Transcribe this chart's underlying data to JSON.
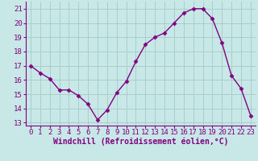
{
  "x": [
    0,
    1,
    2,
    3,
    4,
    5,
    6,
    7,
    8,
    9,
    10,
    11,
    12,
    13,
    14,
    15,
    16,
    17,
    18,
    19,
    20,
    21,
    22,
    23
  ],
  "y": [
    17.0,
    16.5,
    16.1,
    15.3,
    15.3,
    14.9,
    14.3,
    13.2,
    13.9,
    15.1,
    15.9,
    17.3,
    18.5,
    19.0,
    19.3,
    20.0,
    20.7,
    21.0,
    21.0,
    20.3,
    18.6,
    16.3,
    15.4,
    13.5
  ],
  "line_color": "#800080",
  "marker": "D",
  "marker_size": 2.5,
  "bg_color": "#c8e8e8",
  "grid_color": "#a8cece",
  "xlabel": "Windchill (Refroidissement éolien,°C)",
  "ylabel": "",
  "ylim_min": 12.8,
  "ylim_max": 21.5,
  "xlim_min": -0.5,
  "xlim_max": 23.5,
  "yticks": [
    13,
    14,
    15,
    16,
    17,
    18,
    19,
    20,
    21
  ],
  "xticks": [
    0,
    1,
    2,
    3,
    4,
    5,
    6,
    7,
    8,
    9,
    10,
    11,
    12,
    13,
    14,
    15,
    16,
    17,
    18,
    19,
    20,
    21,
    22,
    23
  ],
  "xlabel_color": "#800080",
  "tick_color": "#800080",
  "spine_color": "#800080",
  "xlabel_fontsize": 7,
  "tick_fontsize": 6.5,
  "line_width": 1.0
}
